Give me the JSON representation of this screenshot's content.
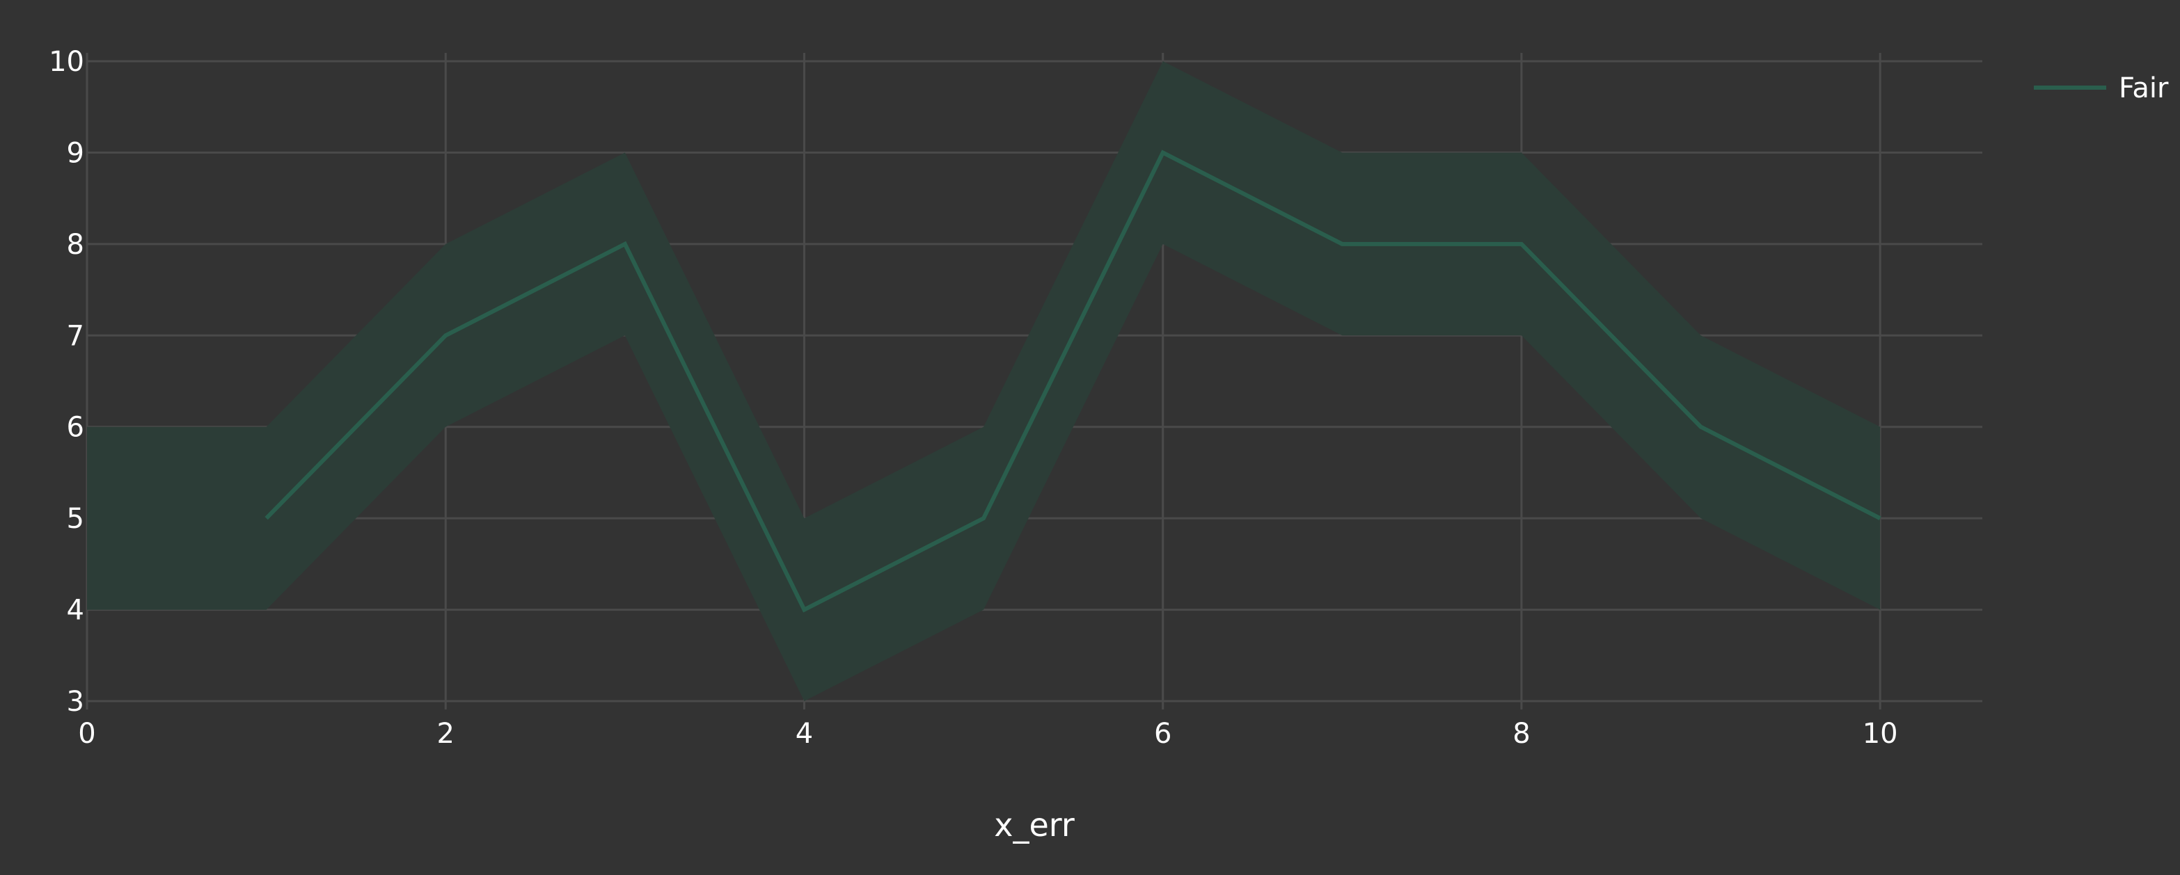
{
  "chart_data": {
    "type": "line",
    "title": "",
    "xlabel": "x_err",
    "ylabel": "",
    "xlim": [
      0,
      10.57
    ],
    "ylim": [
      3,
      10
    ],
    "x_ticks": [
      0,
      2,
      4,
      6,
      8,
      10
    ],
    "y_ticks": [
      3,
      4,
      5,
      6,
      7,
      8,
      9,
      10
    ],
    "grid": true,
    "legend_position": "top-right",
    "colors": {
      "background": "#333333",
      "grid": "#4a4a4a",
      "line": "#2a5e4d",
      "band": "#2c3d37"
    },
    "band": {
      "upper": [
        [
          0,
          6
        ],
        [
          1,
          6
        ],
        [
          2,
          8
        ],
        [
          3,
          9
        ],
        [
          4,
          5
        ],
        [
          5,
          6
        ],
        [
          6,
          10
        ],
        [
          7,
          9
        ],
        [
          8,
          9
        ],
        [
          9,
          7
        ],
        [
          10,
          6
        ]
      ],
      "lower": [
        [
          0,
          4
        ],
        [
          1,
          4
        ],
        [
          2,
          6
        ],
        [
          3,
          7
        ],
        [
          4,
          3
        ],
        [
          5,
          4
        ],
        [
          6,
          8
        ],
        [
          7,
          7
        ],
        [
          8,
          7
        ],
        [
          9,
          5
        ],
        [
          10,
          4
        ]
      ]
    },
    "series": [
      {
        "name": "Fair",
        "x": [
          1,
          2,
          3,
          4,
          5,
          6,
          7,
          8,
          9,
          10
        ],
        "y": [
          5,
          7,
          8,
          4,
          5,
          9,
          8,
          8,
          6,
          5
        ]
      }
    ]
  }
}
